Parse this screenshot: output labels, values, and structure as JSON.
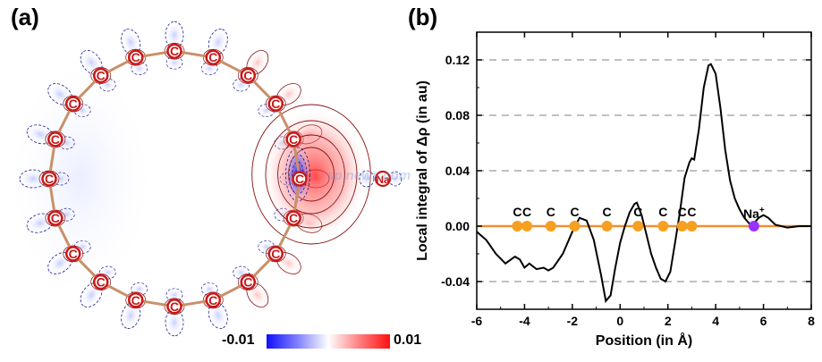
{
  "panels": {
    "a": {
      "label": "(a)",
      "atom_symbol": "C",
      "dopant_symbol": "Na",
      "colorbar": {
        "min_label": "-0.01",
        "max_label": "0.01",
        "colors": {
          "negative": "#1010ff",
          "zero": "#ffffff",
          "positive": "#ff1010"
        }
      },
      "watermark": "sp.news.com"
    },
    "b": {
      "label": "(b)"
    }
  },
  "chart_data": {
    "type": "line",
    "xlabel": "Position (in Å)",
    "ylabel": "Local integral of Δρ (in au)",
    "xlim": [
      -6,
      8
    ],
    "ylim": [
      -0.06,
      0.14
    ],
    "xticks": [
      "-6",
      "-4",
      "-2",
      "0",
      "2",
      "4",
      "6",
      "8"
    ],
    "yticks": [
      "-0.04",
      "0.00",
      "0.04",
      "0.08",
      "0.12"
    ],
    "grid": "horizontal dashed",
    "series": [
      {
        "color": "#000000",
        "x": [
          -6.0,
          -5.6,
          -5.2,
          -4.8,
          -4.4,
          -4.2,
          -4.0,
          -3.8,
          -3.5,
          -3.2,
          -3.0,
          -2.8,
          -2.4,
          -2.0,
          -1.7,
          -1.4,
          -1.1,
          -0.8,
          -0.6,
          -0.4,
          -0.2,
          0.0,
          0.2,
          0.4,
          0.6,
          0.7,
          0.9,
          1.1,
          1.3,
          1.5,
          1.7,
          1.9,
          2.1,
          2.3,
          2.5,
          2.7,
          2.9,
          3.0,
          3.1,
          3.3,
          3.5,
          3.7,
          3.8,
          4.0,
          4.2,
          4.4,
          4.6,
          4.8,
          5.0,
          5.2,
          5.4,
          5.6,
          5.8,
          6.0,
          6.2,
          6.5,
          7.0,
          7.5,
          8.0
        ],
        "y": [
          -0.004,
          -0.01,
          -0.02,
          -0.027,
          -0.022,
          -0.024,
          -0.03,
          -0.027,
          -0.031,
          -0.03,
          -0.032,
          -0.03,
          -0.02,
          -0.004,
          0.006,
          0.004,
          -0.01,
          -0.035,
          -0.054,
          -0.05,
          -0.03,
          -0.012,
          0.0,
          0.01,
          0.016,
          0.017,
          0.008,
          -0.006,
          -0.02,
          -0.03,
          -0.038,
          -0.04,
          -0.033,
          -0.012,
          0.01,
          0.035,
          0.046,
          0.049,
          0.048,
          0.07,
          0.1,
          0.116,
          0.117,
          0.11,
          0.085,
          0.055,
          0.033,
          0.02,
          0.012,
          0.006,
          0.002,
          0.002,
          0.006,
          0.008,
          0.006,
          0.001,
          -0.001,
          0.0,
          0.0
        ]
      }
    ],
    "markers": {
      "baseline_color": "#f09030",
      "carbon_color": "#f5a020",
      "sodium_color": "#9b30ff",
      "carbon_positions": [
        -4.3,
        -3.9,
        -2.9,
        -1.9,
        -0.55,
        0.75,
        1.8,
        2.6,
        3.0
      ],
      "carbon_labels": [
        "C",
        "C",
        "C",
        "C",
        "C",
        "C",
        "C",
        "C",
        "C"
      ],
      "sodium_position": 5.6,
      "sodium_label": "Na",
      "sodium_charge": "+"
    }
  }
}
